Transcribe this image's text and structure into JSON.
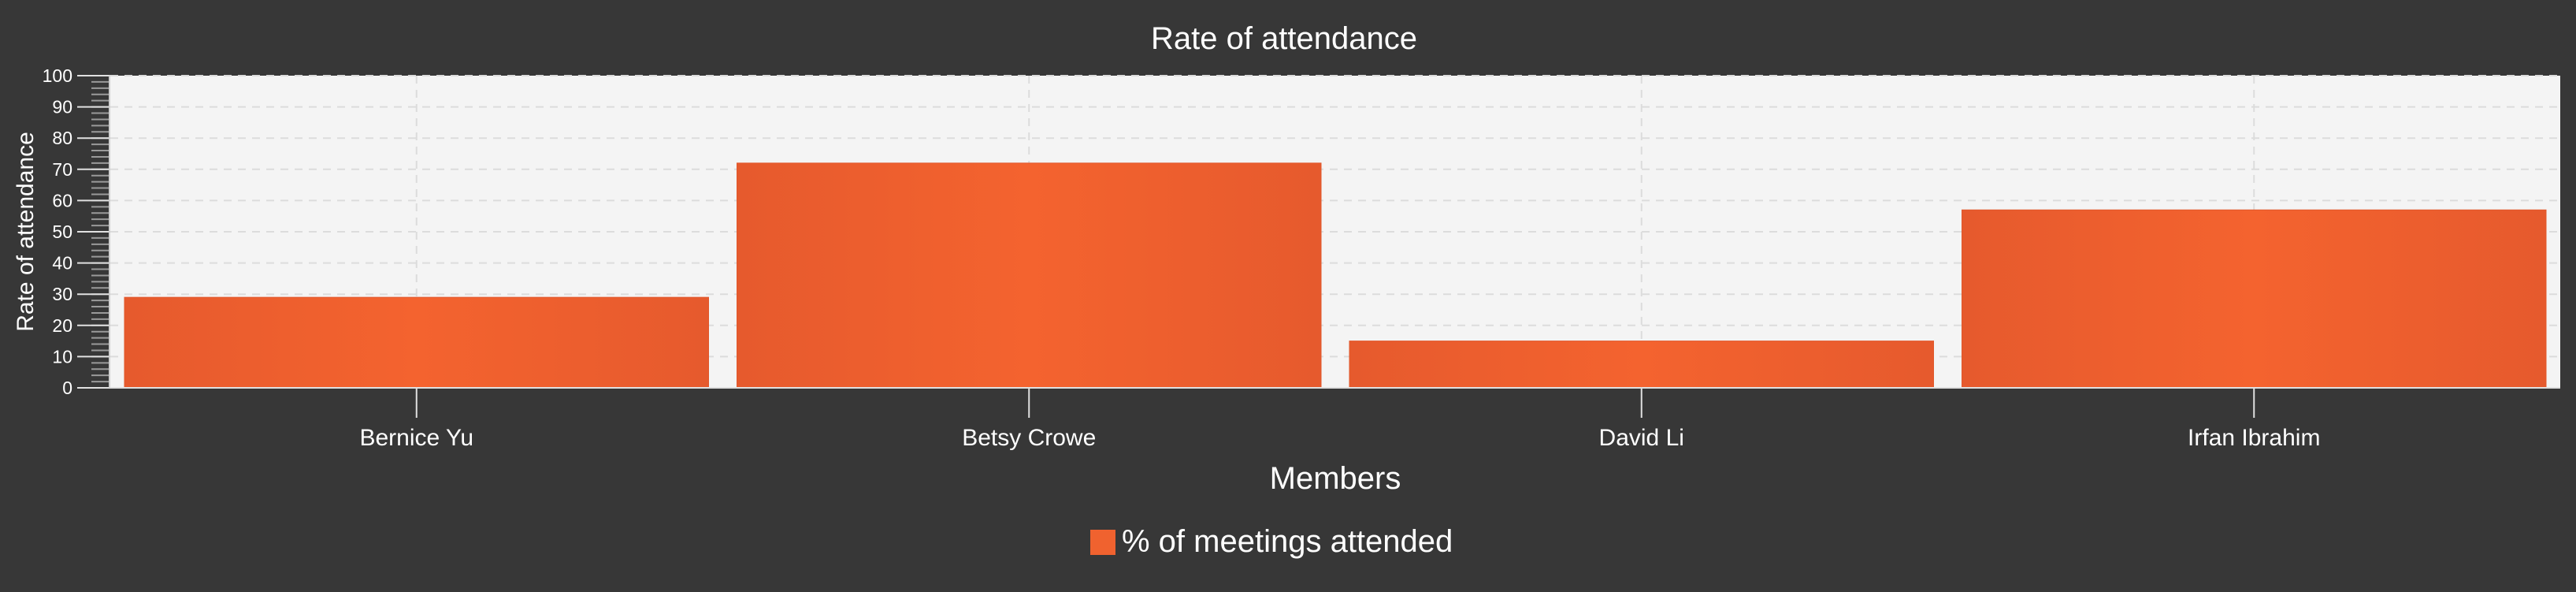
{
  "chart_data": {
    "type": "bar",
    "title": "Rate of attendance",
    "xlabel": "Members",
    "ylabel": "Rate of attendance",
    "categories": [
      "Bernice Yu",
      "Betsy Crowe",
      "David Li",
      "Irfan Ibrahim"
    ],
    "series": [
      {
        "name": "% of meetings attended",
        "values": [
          29,
          72,
          15,
          57
        ],
        "color": "#F0622F"
      }
    ],
    "ylim": [
      0,
      100
    ],
    "yticks": [
      0,
      10,
      20,
      30,
      40,
      50,
      60,
      70,
      80,
      90,
      100
    ],
    "grid": true,
    "legend_position": "bottom-center"
  },
  "colors": {
    "background": "#373737",
    "plot_background": "#F4F4F4",
    "bar": "#F0622F",
    "bar_edge": "#E55A2E",
    "grid": "#DADADA",
    "text": "#FFFFFF"
  }
}
